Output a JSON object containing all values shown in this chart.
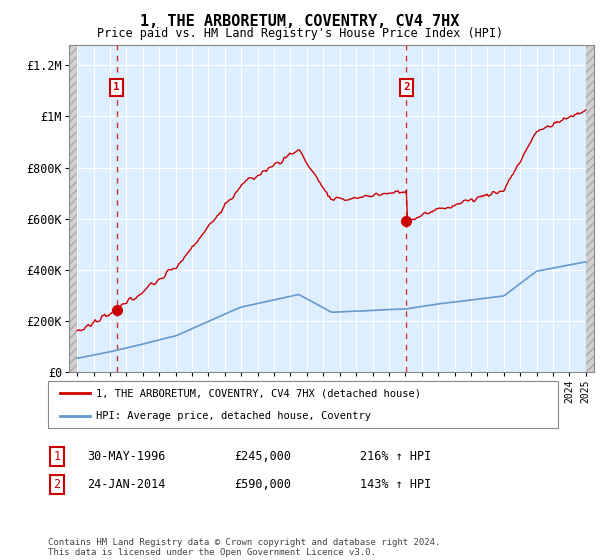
{
  "title": "1, THE ARBORETUM, COVENTRY, CV4 7HX",
  "subtitle": "Price paid vs. HM Land Registry's House Price Index (HPI)",
  "legend_line1": "1, THE ARBORETUM, COVENTRY, CV4 7HX (detached house)",
  "legend_line2": "HPI: Average price, detached house, Coventry",
  "table_row1_num": "1",
  "table_row1_date": "30-MAY-1996",
  "table_row1_price": "£245,000",
  "table_row1_pct": "216% ↑ HPI",
  "table_row2_num": "2",
  "table_row2_date": "24-JAN-2014",
  "table_row2_price": "£590,000",
  "table_row2_pct": "143% ↑ HPI",
  "footnote": "Contains HM Land Registry data © Crown copyright and database right 2024.\nThis data is licensed under the Open Government Licence v3.0.",
  "sale1_x": 1996.41,
  "sale1_y": 245000,
  "sale2_x": 2014.07,
  "sale2_y": 590000,
  "xmin": 1993.5,
  "xmax": 2025.5,
  "ymin": 0,
  "ymax": 1280000,
  "hatch_left_end": 1994.0,
  "hatch_right_start": 2025.0,
  "plot_bg": "#ddeeff",
  "red_line_color": "#cc0000",
  "blue_line_color": "#6699cc",
  "grid_color": "#ffffff",
  "yticks": [
    0,
    200000,
    400000,
    600000,
    800000,
    1000000,
    1200000
  ],
  "ytick_labels": [
    "£0",
    "£200K",
    "£400K",
    "£600K",
    "£800K",
    "£1M",
    "£1.2M"
  ],
  "xticks": [
    1994,
    1995,
    1996,
    1997,
    1998,
    1999,
    2000,
    2001,
    2002,
    2003,
    2004,
    2005,
    2006,
    2007,
    2008,
    2009,
    2010,
    2011,
    2012,
    2013,
    2014,
    2015,
    2016,
    2017,
    2018,
    2019,
    2020,
    2021,
    2022,
    2023,
    2024,
    2025
  ]
}
